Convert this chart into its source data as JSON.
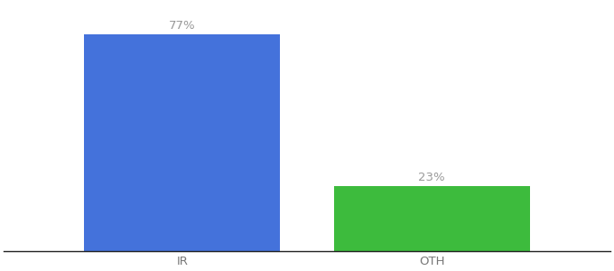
{
  "categories": [
    "IR",
    "OTH"
  ],
  "values": [
    77,
    23
  ],
  "bar_colors": [
    "#4472db",
    "#3dbb3d"
  ],
  "label_texts": [
    "77%",
    "23%"
  ],
  "ylim": [
    0,
    88
  ],
  "background_color": "#ffffff",
  "bar_width": 0.55,
  "label_fontsize": 9.5,
  "tick_fontsize": 9.5,
  "label_color": "#999999",
  "tick_color": "#777777",
  "x_positions": [
    0.3,
    1.0
  ],
  "xlim": [
    -0.2,
    1.5
  ]
}
